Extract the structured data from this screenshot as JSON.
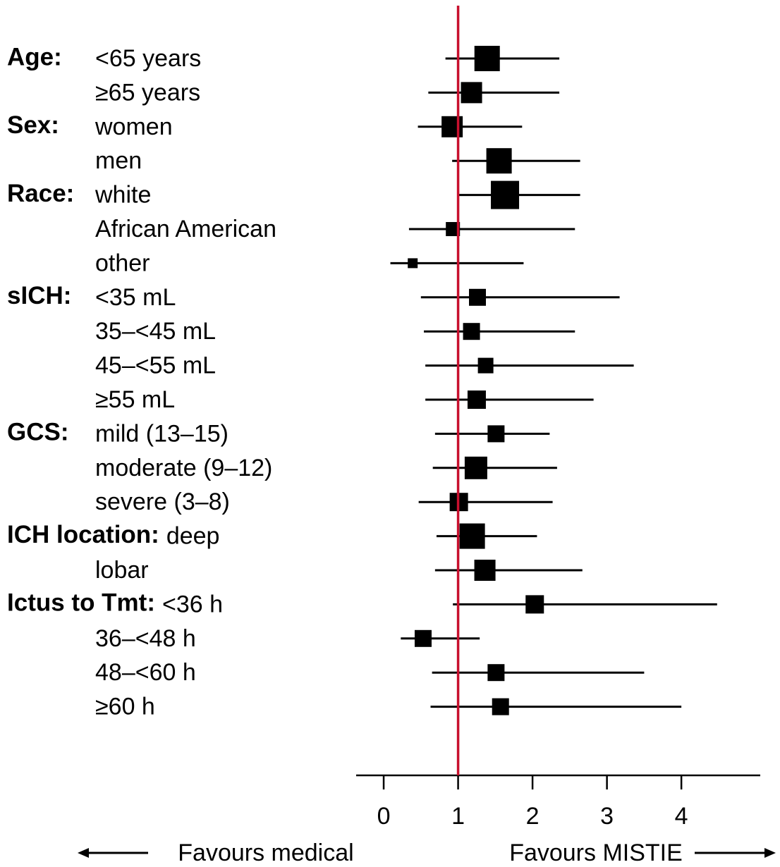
{
  "chart_data": {
    "type": "forest",
    "reference": 1,
    "reference_color": "#c8102e",
    "color": "#000000",
    "xlim": [
      -0.37,
      5.06
    ],
    "xticks": [
      0,
      1,
      2,
      3,
      4
    ],
    "grid": false,
    "left_label": "Favours medical",
    "right_label": "Favours MISTIE",
    "groups": [
      {
        "label": "Age:",
        "rows": [
          {
            "label": "<65 years",
            "estimate": 1.39,
            "lower": 0.83,
            "upper": 2.36,
            "weight": 9
          },
          {
            "label": "≥65 years",
            "estimate": 1.18,
            "lower": 0.6,
            "upper": 2.36,
            "weight": 7.5
          }
        ]
      },
      {
        "label": "Sex:",
        "rows": [
          {
            "label": "women",
            "estimate": 0.92,
            "lower": 0.46,
            "upper": 1.86,
            "weight": 7.5
          },
          {
            "label": "men",
            "estimate": 1.55,
            "lower": 0.92,
            "upper": 2.64,
            "weight": 9
          }
        ]
      },
      {
        "label": "Race:",
        "rows": [
          {
            "label": "white",
            "estimate": 1.63,
            "lower": 1.01,
            "upper": 2.64,
            "weight": 10
          },
          {
            "label": "African American",
            "estimate": 0.93,
            "lower": 0.34,
            "upper": 2.57,
            "weight": 5
          },
          {
            "label": "other",
            "estimate": 0.39,
            "lower": 0.09,
            "upper": 1.88,
            "weight": 3.5
          }
        ]
      },
      {
        "label": "sICH:",
        "rows": [
          {
            "label": "<35 mL",
            "estimate": 1.26,
            "lower": 0.5,
            "upper": 3.17,
            "weight": 6
          },
          {
            "label": "35–<45 mL",
            "estimate": 1.18,
            "lower": 0.54,
            "upper": 2.57,
            "weight": 6
          },
          {
            "label": "45–<55 mL",
            "estimate": 1.37,
            "lower": 0.56,
            "upper": 3.36,
            "weight": 5.5
          },
          {
            "label": "≥55 mL",
            "estimate": 1.25,
            "lower": 0.56,
            "upper": 2.82,
            "weight": 6.5
          }
        ]
      },
      {
        "label": "GCS:",
        "rows": [
          {
            "label": "mild (13–15)",
            "estimate": 1.51,
            "lower": 0.69,
            "upper": 2.23,
            "weight": 6
          },
          {
            "label": "moderate (9–12)",
            "estimate": 1.24,
            "lower": 0.66,
            "upper": 2.33,
            "weight": 8
          },
          {
            "label": "severe (3–8)",
            "estimate": 1.01,
            "lower": 0.47,
            "upper": 2.27,
            "weight": 6.5
          }
        ]
      },
      {
        "label": "ICH location:",
        "rows": [
          {
            "label": "deep",
            "estimate": 1.19,
            "lower": 0.71,
            "upper": 2.06,
            "weight": 9
          },
          {
            "label": "lobar",
            "estimate": 1.36,
            "lower": 0.69,
            "upper": 2.67,
            "weight": 7.5
          }
        ]
      },
      {
        "label": "Ictus to Tmt:",
        "rows": [
          {
            "label": "<36 h",
            "estimate": 2.03,
            "lower": 0.93,
            "upper": 4.48,
            "weight": 6.5
          },
          {
            "label": "36–<48 h",
            "estimate": 0.53,
            "lower": 0.23,
            "upper": 1.29,
            "weight": 6
          },
          {
            "label": "48–<60 h",
            "estimate": 1.51,
            "lower": 0.65,
            "upper": 3.5,
            "weight": 6
          },
          {
            "label": "≥60 h",
            "estimate": 1.57,
            "lower": 0.63,
            "upper": 4.0,
            "weight": 6
          }
        ]
      }
    ]
  }
}
